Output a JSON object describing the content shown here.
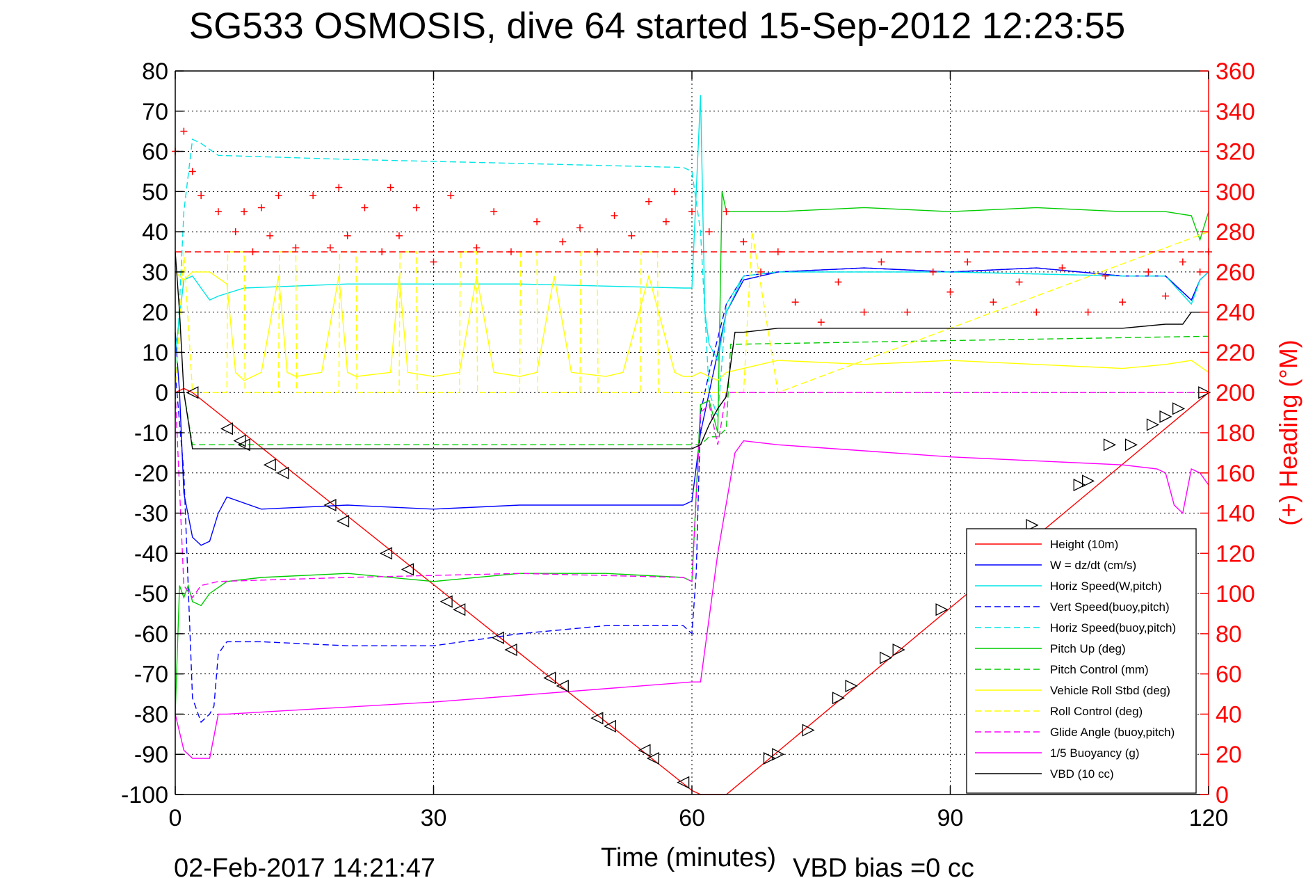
{
  "chart_data": {
    "type": "line",
    "title": "SG533 OSMOSIS, dive 64 started 15-Sep-2012 12:23:55",
    "xlabel": "Time (minutes)",
    "ylabel_right": "(+) Heading (°M)",
    "xlim": [
      0,
      120
    ],
    "ylim_left": [
      -100,
      80
    ],
    "ylim_right": [
      0,
      360
    ],
    "x_ticks": [
      "0",
      "30",
      "60",
      "90",
      "120"
    ],
    "y_ticks_left": [
      "80",
      "70",
      "60",
      "50",
      "40",
      "30",
      "20",
      "10",
      "0",
      "-10",
      "-20",
      "-30",
      "-40",
      "-50",
      "-60",
      "-70",
      "-80",
      "-90",
      "-100"
    ],
    "y_ticks_right": [
      "360",
      "340",
      "320",
      "300",
      "280",
      "260",
      "240",
      "220",
      "200",
      "180",
      "160",
      "140",
      "120",
      "100",
      "80",
      "60",
      "40",
      "20",
      "0"
    ],
    "grid": true,
    "legend_position": "bottom-right",
    "footer_left": "02-Feb-2017 14:21:47",
    "footer_right": "VBD bias =0 cc",
    "series": [
      {
        "name": "Height (10m)",
        "color": "#ff0000",
        "style": "solid",
        "x": [
          0,
          1,
          2,
          60,
          61,
          64,
          120
        ],
        "y": [
          0,
          1,
          0,
          -99,
          -100,
          -100,
          0
        ]
      },
      {
        "name": "W = dz/dt (cm/s)",
        "color": "#0000ff",
        "style": "solid",
        "x": [
          0,
          0.5,
          1,
          2,
          3,
          4,
          5,
          6,
          10,
          20,
          30,
          40,
          50,
          59,
          60,
          61,
          62,
          63,
          64,
          66,
          70,
          80,
          90,
          100,
          110,
          115,
          118,
          119,
          120
        ],
        "y": [
          15,
          0,
          -25,
          -36,
          -38,
          -37,
          -30,
          -26,
          -29,
          -28,
          -29,
          -28,
          -28,
          -28,
          -27,
          -10,
          0,
          10,
          20,
          28,
          30,
          31,
          30,
          31,
          29,
          29,
          23,
          28,
          30
        ]
      },
      {
        "name": "Horiz Speed(W,pitch)",
        "color": "#00e5e5",
        "style": "solid",
        "x": [
          0,
          1,
          2,
          3,
          4,
          5,
          8,
          20,
          40,
          59,
          60,
          61,
          61.5,
          62,
          63,
          64,
          66,
          70,
          90,
          110,
          115,
          118,
          119,
          120
        ],
        "y": [
          10,
          28,
          29,
          26,
          23,
          24,
          26,
          27,
          27,
          26,
          26,
          74,
          20,
          12,
          8,
          20,
          29,
          30,
          30,
          29,
          29,
          22,
          28,
          30
        ]
      },
      {
        "name": "Vert Speed(buoy,pitch)",
        "color": "#0000ff",
        "style": "dashed",
        "x": [
          0,
          1,
          2,
          3,
          4,
          4.5,
          5,
          6,
          10,
          20,
          30,
          40,
          50,
          59,
          60,
          60.5,
          61,
          62,
          64,
          66,
          70,
          80,
          90,
          100,
          110,
          115,
          118,
          119,
          120
        ],
        "y": [
          5,
          -20,
          -76,
          -82,
          -80,
          -78,
          -65,
          -62,
          -62,
          -63,
          -63,
          -60,
          -58,
          -58,
          -60,
          -45,
          -5,
          5,
          22,
          29,
          30,
          31,
          30,
          31,
          29,
          29,
          23,
          28,
          30
        ]
      },
      {
        "name": "Horiz Speed(buoy,pitch)",
        "color": "#00e5e5",
        "style": "dashed",
        "x": [
          0,
          1,
          2,
          3,
          5,
          20,
          40,
          59,
          60,
          61,
          62,
          63,
          64,
          66,
          70,
          90,
          110,
          115,
          118,
          119,
          120
        ],
        "y": [
          0,
          45,
          63,
          62,
          59,
          58,
          57,
          56,
          55,
          40,
          0,
          -6,
          22,
          29,
          30,
          30,
          29,
          29,
          22,
          28,
          30
        ]
      },
      {
        "name": "Pitch Up (deg)",
        "color": "#00cc00",
        "style": "solid",
        "x": [
          0,
          0.5,
          1,
          1.5,
          2,
          3,
          4,
          6,
          10,
          20,
          30,
          40,
          50,
          59,
          60,
          61,
          62,
          63,
          63.5,
          64,
          70,
          80,
          90,
          100,
          110,
          115,
          118,
          119,
          120
        ],
        "y": [
          -80,
          -48,
          -51,
          -48,
          -52,
          -53,
          -50,
          -47,
          -46,
          -45,
          -47,
          -45,
          -45,
          -46,
          -47,
          -3,
          -2,
          -10,
          50,
          45,
          45,
          46,
          45,
          46,
          45,
          45,
          44,
          38,
          45
        ]
      },
      {
        "name": "Pitch Control (mm)",
        "color": "#00cc00",
        "style": "dashed",
        "x": [
          0,
          1,
          2,
          60,
          61,
          62,
          63,
          64,
          64.5,
          120
        ],
        "y": [
          0,
          0,
          -13,
          -13,
          -13,
          -11,
          -11,
          -9,
          12,
          14
        ]
      },
      {
        "name": "Vehicle Roll Stbd (deg)",
        "color": "#ffff00",
        "style": "solid",
        "x": [
          0,
          1,
          2,
          4,
          6,
          7,
          8,
          10,
          12,
          13,
          14,
          17,
          19,
          20,
          21,
          25,
          26,
          27,
          30,
          33,
          35,
          37,
          40,
          42,
          44,
          46,
          50,
          52,
          55,
          58,
          59,
          60,
          61,
          63,
          64,
          70,
          80,
          90,
          100,
          110,
          115,
          118,
          120
        ],
        "y": [
          30,
          28,
          30,
          30,
          27,
          5,
          3,
          5,
          29,
          5,
          4,
          5,
          29,
          5,
          4,
          5,
          29,
          5,
          4,
          5,
          29,
          5,
          4,
          5,
          29,
          5,
          4,
          5,
          29,
          5,
          4,
          4,
          5,
          3,
          5,
          8,
          7,
          8,
          7,
          6,
          7,
          8,
          5
        ]
      },
      {
        "name": "Roll Control (deg)",
        "color": "#ffff00",
        "style": "dashed",
        "x": [
          0,
          1,
          2,
          6,
          6.1,
          8,
          8.1,
          12,
          12.1,
          14,
          14.1,
          19,
          19.1,
          21,
          21.1,
          26,
          26.1,
          28,
          28.1,
          33,
          33.1,
          35,
          35.1,
          40,
          40.1,
          42,
          42.1,
          47,
          47.1,
          49,
          49.1,
          54,
          54.1,
          56,
          56.1,
          60,
          64,
          66,
          67,
          70,
          120
        ],
        "y": [
          0,
          35,
          0,
          0,
          35,
          35,
          0,
          0,
          35,
          35,
          0,
          0,
          35,
          35,
          0,
          0,
          35,
          35,
          0,
          0,
          35,
          35,
          0,
          0,
          35,
          35,
          0,
          0,
          35,
          35,
          0,
          0,
          35,
          35,
          0,
          0,
          0,
          0,
          40,
          0,
          40
        ]
      },
      {
        "name": "Glide Angle (buoy,pitch)",
        "color": "#ff00ff",
        "style": "dashed",
        "x": [
          0,
          1,
          2,
          3,
          5,
          20,
          40,
          59,
          60,
          61,
          62,
          63,
          64,
          120
        ],
        "y": [
          0,
          -48,
          -51,
          -48,
          -47,
          -46,
          -45,
          -46,
          -47,
          -5,
          -3,
          -13,
          0,
          0
        ]
      },
      {
        "name": "1/5 Buoyancy (g)",
        "color": "#ff00ff",
        "style": "solid",
        "x": [
          0,
          1,
          2,
          3,
          4,
          5,
          6,
          30,
          60,
          61,
          63,
          65,
          66,
          70,
          90,
          110,
          114,
          115,
          116,
          117,
          118,
          119,
          120
        ],
        "y": [
          -80,
          -89,
          -91,
          -91,
          -91,
          -80,
          -80,
          -77,
          -72,
          -72,
          -40,
          -15,
          -12,
          -13,
          -16,
          -18,
          -19,
          -20,
          -28,
          -30,
          -19,
          -20,
          -23
        ]
      },
      {
        "name": "VBD (10 cc)",
        "color": "#000000",
        "style": "solid",
        "x": [
          0,
          0.5,
          1,
          2,
          10,
          60,
          61,
          62,
          63,
          64,
          65,
          66,
          70,
          80,
          90,
          100,
          110,
          115,
          116,
          117,
          118,
          119,
          120
        ],
        "y": [
          35,
          20,
          0,
          -14,
          -14,
          -14,
          -13,
          -8,
          -4,
          -1,
          15,
          15,
          16,
          16,
          16,
          16,
          16,
          17,
          17,
          17,
          20,
          20,
          20
        ]
      },
      {
        "name": "Heading",
        "color": "#ff0000",
        "style": "markers-plus",
        "axis": "right",
        "x": [
          0,
          1,
          2,
          3,
          5,
          7,
          8,
          9,
          10,
          11,
          12,
          14,
          16,
          18,
          19,
          20,
          22,
          24,
          25,
          26,
          28,
          30,
          32,
          35,
          37,
          39,
          42,
          45,
          47,
          49,
          51,
          53,
          55,
          57,
          58,
          60,
          62,
          64,
          66,
          68,
          70,
          72,
          75,
          77,
          80,
          82,
          85,
          88,
          90,
          92,
          95,
          98,
          100,
          103,
          106,
          108,
          110,
          113,
          115,
          117,
          119,
          120
        ],
        "y": [
          320,
          330,
          310,
          298,
          290,
          280,
          290,
          270,
          292,
          278,
          298,
          272,
          298,
          272,
          302,
          278,
          292,
          270,
          302,
          278,
          292,
          265,
          298,
          272,
          290,
          270,
          285,
          275,
          282,
          270,
          288,
          278,
          295,
          285,
          300,
          290,
          280,
          290,
          275,
          260,
          270,
          245,
          235,
          255,
          240,
          265,
          240,
          260,
          250,
          265,
          245,
          255,
          240,
          262,
          240,
          258,
          245,
          260,
          248,
          265,
          260,
          270
        ]
      },
      {
        "name": "Heading reference",
        "color": "#ff0000",
        "style": "dashed",
        "axis": "right",
        "x": [
          0,
          120
        ],
        "y": [
          270,
          270
        ]
      }
    ],
    "markers": {
      "color": "#000000",
      "descent_x": [
        2,
        6,
        7.5,
        8,
        11,
        12.5,
        18,
        19.5,
        24.5,
        27,
        31.5,
        33,
        37.5,
        39,
        43.5,
        45,
        49,
        50.5,
        54.5,
        55.5,
        59
      ],
      "descent_y": [
        0,
        -9,
        -12,
        -13,
        -18,
        -20,
        -28,
        -32,
        -40,
        -44,
        -52,
        -54,
        -61,
        -64,
        -71,
        -73,
        -81,
        -83,
        -89,
        -91,
        -97
      ],
      "ascent_x": [
        69,
        70,
        73.5,
        77,
        78.5,
        82.5,
        84,
        89,
        95.5,
        99.5,
        105,
        106,
        108.5,
        111,
        113.5,
        115,
        116.5,
        119.5
      ],
      "ascent_y": [
        -91,
        -90,
        -84,
        -76,
        -73,
        -66,
        -64,
        -54,
        -43,
        -33,
        -23,
        -22,
        -13,
        -13,
        -8,
        -6,
        -4,
        0
      ]
    }
  }
}
